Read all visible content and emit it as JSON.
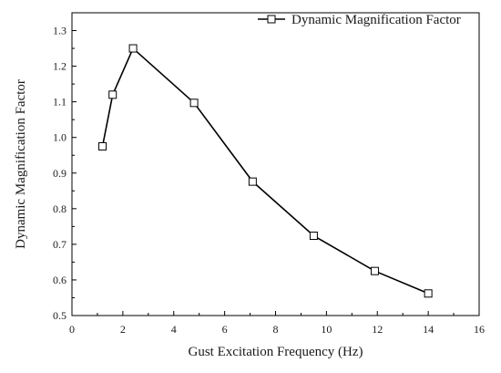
{
  "chart_data": {
    "type": "line",
    "title": "",
    "xlabel": "Gust Excitation Frequency (Hz)",
    "ylabel": "Dynamic Magnification Factor",
    "xlim": [
      0,
      16
    ],
    "ylim": [
      0.5,
      1.35
    ],
    "xticks": [
      0,
      2,
      4,
      6,
      8,
      10,
      12,
      14,
      16
    ],
    "yticks": [
      0.5,
      0.6,
      0.7,
      0.8,
      0.9,
      1.0,
      1.1,
      1.2,
      1.3
    ],
    "xtick_labels": [
      "0",
      "2",
      "4",
      "6",
      "8",
      "10",
      "12",
      "14",
      "16"
    ],
    "ytick_labels": [
      "0.5",
      "0.6",
      "0.7",
      "0.8",
      "0.9",
      "1.0",
      "1.1",
      "1.2",
      "1.3"
    ],
    "grid": false,
    "legend_position": "top-right",
    "series": [
      {
        "name": "Dynamic Magnification Factor",
        "marker": "open-square",
        "color": "#000000",
        "x": [
          1.2,
          1.6,
          2.4,
          4.8,
          7.1,
          9.5,
          11.9,
          14.0
        ],
        "y": [
          0.975,
          1.12,
          1.25,
          1.097,
          0.876,
          0.724,
          0.625,
          0.562
        ]
      }
    ]
  }
}
